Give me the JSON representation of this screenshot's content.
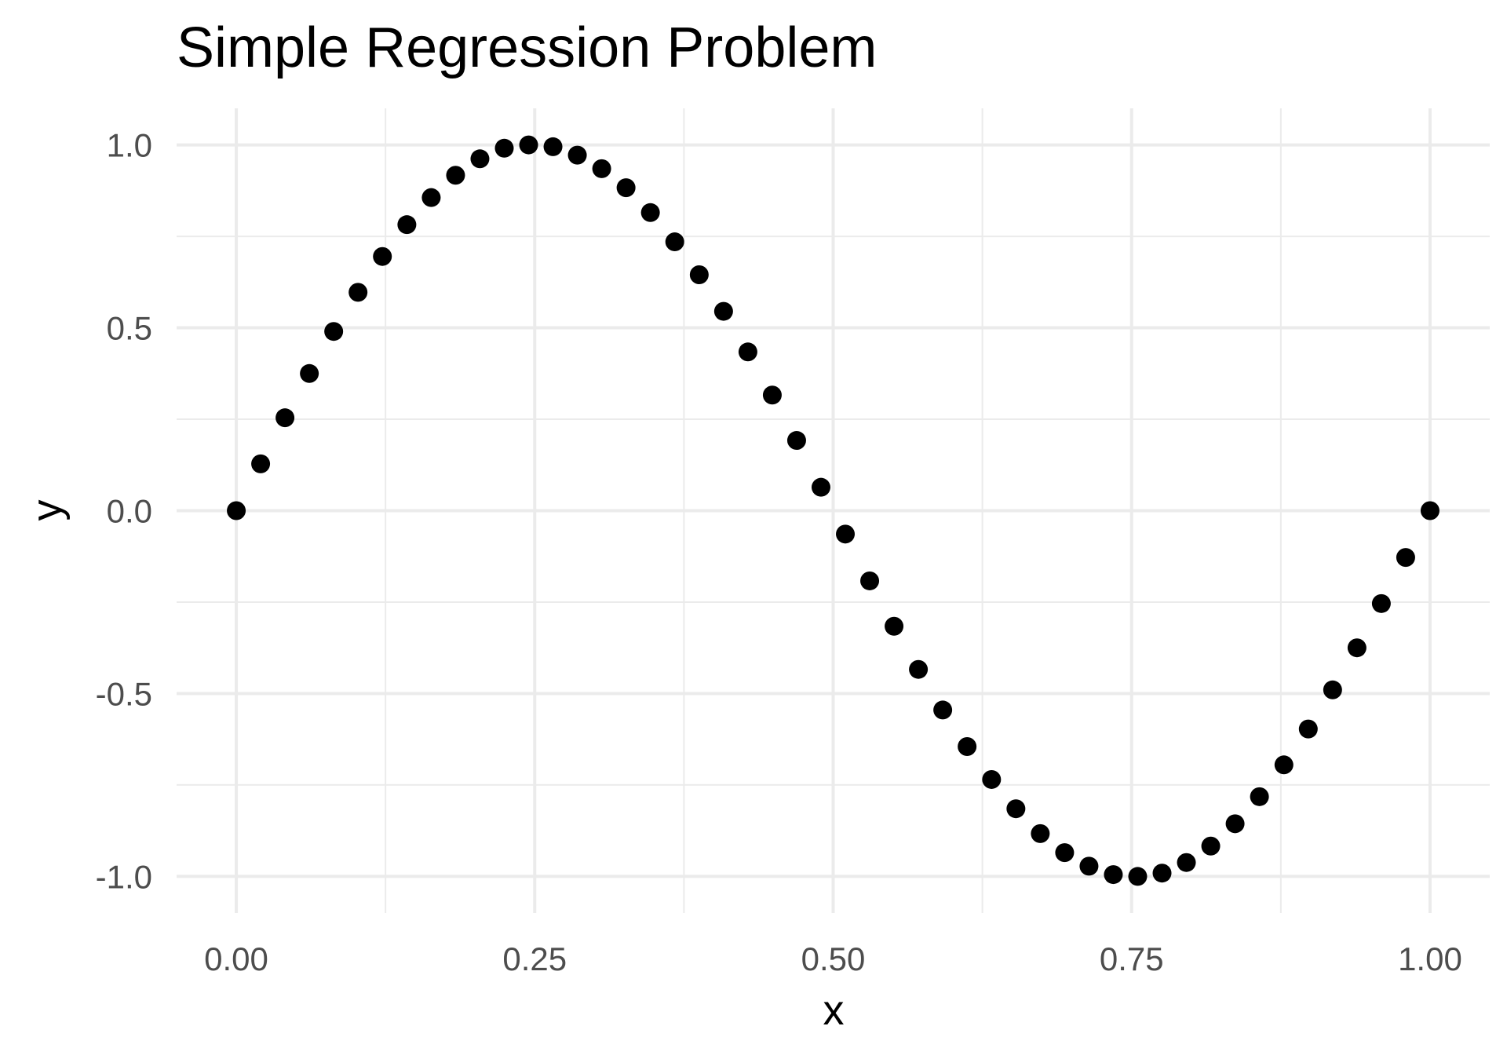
{
  "chart_data": {
    "type": "scatter",
    "title": "Simple Regression Problem",
    "xlabel": "x",
    "ylabel": "y",
    "xlim": [
      -0.05,
      1.05
    ],
    "ylim": [
      -1.1,
      1.1
    ],
    "x_ticks": [
      0.0,
      0.25,
      0.5,
      0.75,
      1.0
    ],
    "x_tick_labels": [
      "0.00",
      "0.25",
      "0.50",
      "0.75",
      "1.00"
    ],
    "y_ticks": [
      -1.0,
      -0.5,
      0.0,
      0.5,
      1.0
    ],
    "y_tick_labels": [
      "-1.0",
      "-0.5",
      "0.0",
      "0.5",
      "1.0"
    ],
    "x_minor_ticks": [
      0.125,
      0.375,
      0.625,
      0.875
    ],
    "y_minor_ticks": [
      -0.75,
      -0.25,
      0.25,
      0.75
    ],
    "grid": true,
    "legend": "none",
    "point_color": "#000000",
    "grid_color": "#ebebeb",
    "series": [
      {
        "x": [
          0.0,
          0.0204,
          0.0408,
          0.0612,
          0.0816,
          0.102,
          0.1224,
          0.1429,
          0.1633,
          0.1837,
          0.2041,
          0.2245,
          0.2449,
          0.2653,
          0.2857,
          0.3061,
          0.3265,
          0.3469,
          0.3673,
          0.3878,
          0.4082,
          0.4286,
          0.449,
          0.4694,
          0.4898,
          0.5102,
          0.5306,
          0.551,
          0.5714,
          0.5918,
          0.6122,
          0.6327,
          0.6531,
          0.6735,
          0.6939,
          0.7143,
          0.7347,
          0.7551,
          0.7755,
          0.7959,
          0.8163,
          0.8367,
          0.8571,
          0.8776,
          0.898,
          0.9184,
          0.9388,
          0.9592,
          0.9796,
          1.0
        ],
        "y": [
          0.0,
          0.128,
          0.254,
          0.375,
          0.49,
          0.597,
          0.695,
          0.782,
          0.856,
          0.917,
          0.962,
          0.991,
          1.0,
          0.995,
          0.972,
          0.935,
          0.883,
          0.815,
          0.735,
          0.645,
          0.545,
          0.434,
          0.316,
          0.192,
          0.064,
          -0.064,
          -0.192,
          -0.316,
          -0.434,
          -0.545,
          -0.645,
          -0.735,
          -0.815,
          -0.883,
          -0.935,
          -0.972,
          -0.995,
          -1.0,
          -0.991,
          -0.962,
          -0.917,
          -0.856,
          -0.782,
          -0.695,
          -0.597,
          -0.49,
          -0.375,
          -0.254,
          -0.128,
          0.0
        ]
      }
    ]
  }
}
